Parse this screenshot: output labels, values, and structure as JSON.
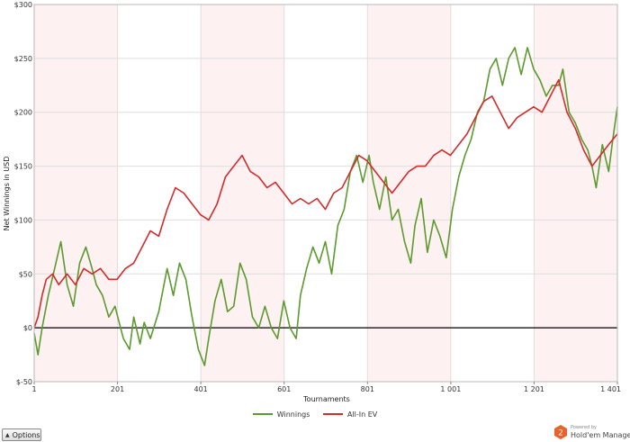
{
  "chart_data": {
    "type": "line",
    "xlabel": "Tournaments",
    "ylabel": "Net Winnings in USD",
    "xlim": [
      1,
      1401
    ],
    "ylim": [
      -50,
      300
    ],
    "x_ticks": [
      "1",
      "201",
      "401",
      "601",
      "801",
      "1 001",
      "1 201",
      "1 401"
    ],
    "y_ticks": [
      "$-50",
      "$0",
      "$50",
      "$100",
      "$150",
      "$200",
      "$250",
      "$300"
    ],
    "grid": true,
    "legend_position": "bottom-center",
    "series": [
      {
        "name": "Winnings",
        "color": "#5b9a2e",
        "x": [
          1,
          10,
          20,
          35,
          50,
          65,
          80,
          95,
          110,
          125,
          140,
          150,
          165,
          180,
          195,
          205,
          215,
          230,
          240,
          255,
          265,
          280,
          300,
          320,
          335,
          350,
          365,
          380,
          395,
          410,
          420,
          435,
          450,
          465,
          480,
          495,
          510,
          525,
          540,
          555,
          570,
          585,
          600,
          615,
          630,
          640,
          655,
          670,
          685,
          700,
          715,
          730,
          745,
          760,
          775,
          790,
          805,
          815,
          830,
          845,
          860,
          875,
          890,
          905,
          915,
          930,
          945,
          960,
          975,
          990,
          1005,
          1020,
          1035,
          1050,
          1065,
          1080,
          1095,
          1110,
          1125,
          1140,
          1155,
          1170,
          1185,
          1200,
          1215,
          1230,
          1245,
          1260,
          1270,
          1285,
          1300,
          1315,
          1330,
          1340,
          1350,
          1365,
          1380,
          1390,
          1401
        ],
        "values": [
          -5,
          -25,
          0,
          30,
          55,
          80,
          40,
          20,
          60,
          75,
          55,
          40,
          30,
          10,
          20,
          5,
          -10,
          -20,
          10,
          -15,
          5,
          -10,
          15,
          55,
          30,
          60,
          45,
          10,
          -20,
          -35,
          -10,
          25,
          45,
          15,
          20,
          60,
          45,
          10,
          0,
          20,
          0,
          -10,
          25,
          0,
          -10,
          30,
          55,
          75,
          60,
          80,
          50,
          95,
          110,
          145,
          160,
          135,
          160,
          135,
          110,
          140,
          100,
          110,
          80,
          60,
          95,
          120,
          70,
          100,
          85,
          65,
          110,
          140,
          160,
          175,
          200,
          210,
          240,
          250,
          225,
          250,
          260,
          235,
          260,
          240,
          230,
          215,
          225,
          225,
          240,
          200,
          190,
          175,
          165,
          150,
          130,
          170,
          145,
          175,
          205
        ]
      },
      {
        "name": "All-In EV",
        "color": "#d42b2b",
        "x": [
          1,
          10,
          20,
          30,
          45,
          60,
          80,
          100,
          120,
          140,
          160,
          180,
          200,
          220,
          240,
          260,
          280,
          300,
          320,
          340,
          360,
          380,
          400,
          420,
          440,
          460,
          480,
          500,
          520,
          540,
          560,
          580,
          600,
          620,
          640,
          660,
          680,
          700,
          720,
          740,
          760,
          780,
          800,
          820,
          840,
          860,
          880,
          900,
          920,
          940,
          960,
          980,
          1000,
          1020,
          1040,
          1060,
          1080,
          1100,
          1120,
          1140,
          1160,
          1180,
          1200,
          1220,
          1240,
          1260,
          1280,
          1300,
          1320,
          1340,
          1360,
          1380,
          1401
        ],
        "values": [
          0,
          10,
          30,
          45,
          50,
          40,
          50,
          40,
          55,
          50,
          55,
          45,
          45,
          55,
          60,
          75,
          90,
          85,
          110,
          130,
          125,
          115,
          105,
          100,
          115,
          140,
          150,
          160,
          145,
          140,
          130,
          135,
          125,
          115,
          120,
          115,
          120,
          110,
          125,
          130,
          145,
          160,
          155,
          145,
          135,
          125,
          135,
          145,
          150,
          150,
          160,
          165,
          160,
          170,
          180,
          195,
          210,
          215,
          200,
          185,
          195,
          200,
          205,
          200,
          215,
          230,
          200,
          185,
          165,
          150,
          160,
          170,
          180
        ]
      }
    ]
  },
  "controls": {
    "options_label": "Options"
  },
  "branding": {
    "powered_by": "Powered by",
    "product_name": "Hold'em Manager",
    "logo_digit": "2"
  }
}
